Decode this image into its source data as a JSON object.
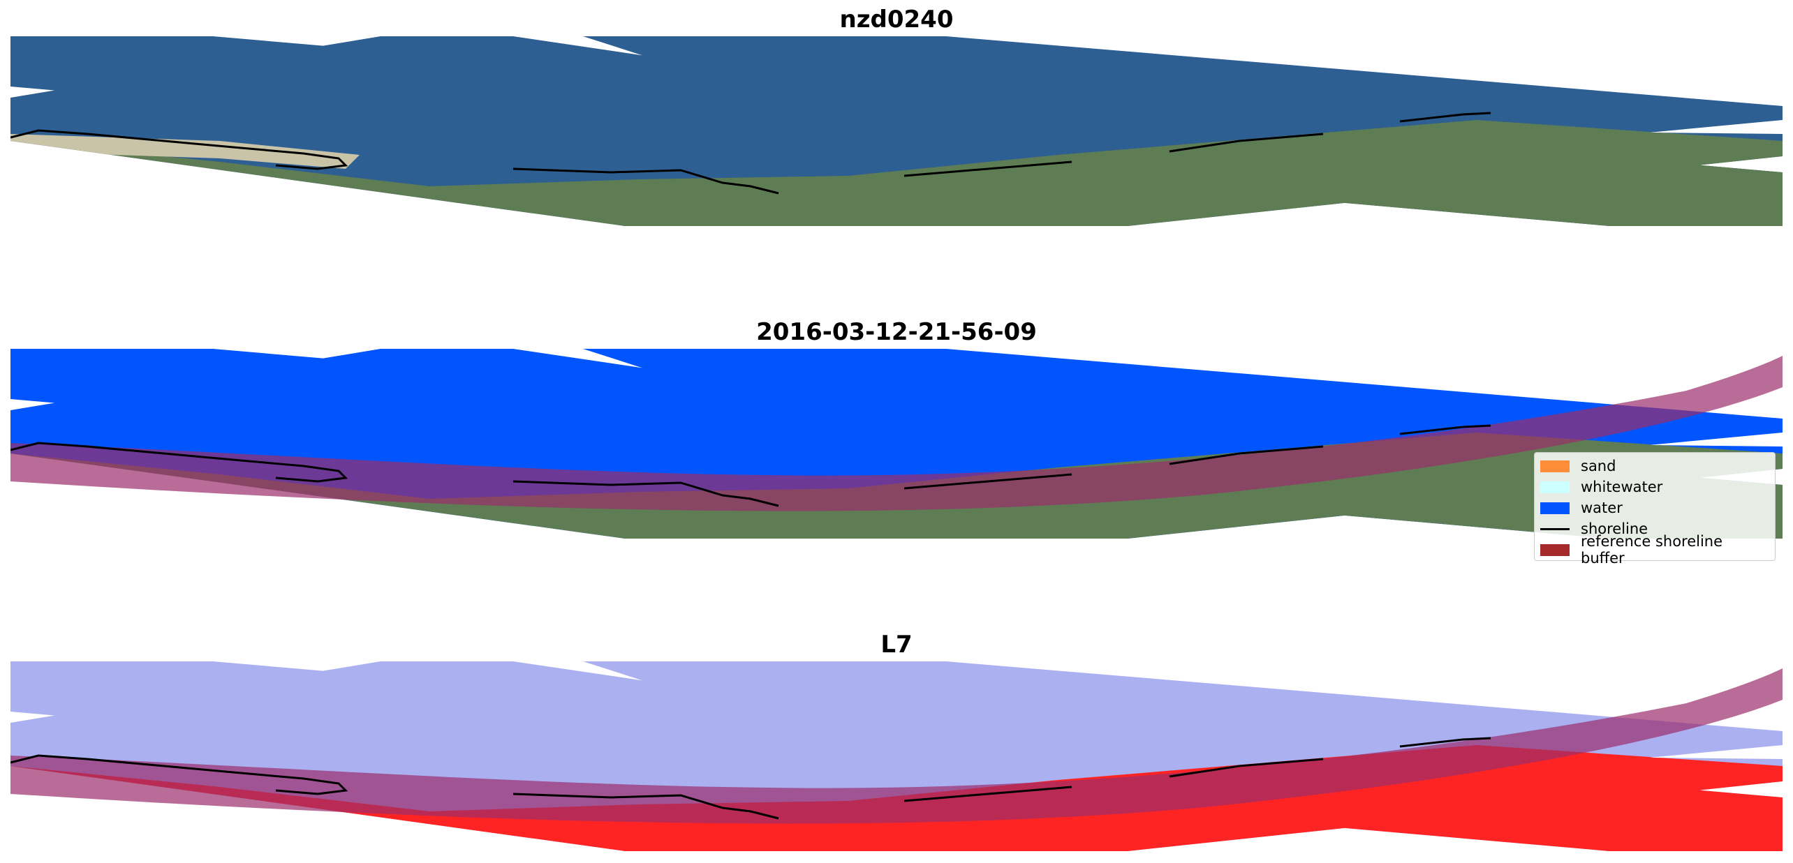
{
  "panels": [
    {
      "title": "nzd0240"
    },
    {
      "title": "2016-03-12-21-56-09"
    },
    {
      "title": "L7"
    }
  ],
  "legend": {
    "items": [
      {
        "label": "sand",
        "color": "#ff8c38"
      },
      {
        "label": "whitewater",
        "color": "#ccffff"
      },
      {
        "label": "water",
        "color": "#0055ff"
      },
      {
        "label": "shoreline",
        "color": "#000000"
      },
      {
        "label": "reference shoreline buffer",
        "color": "#a52a2a"
      }
    ]
  },
  "colors": {
    "ocean": "#2e5f92",
    "land": "#5f7d54",
    "water_class": "#0055ff",
    "ndwi_water": "#aab0f0",
    "ndwi_land": "#ff2424",
    "buffer": "#9b2d6b",
    "shoreline": "#000000"
  }
}
